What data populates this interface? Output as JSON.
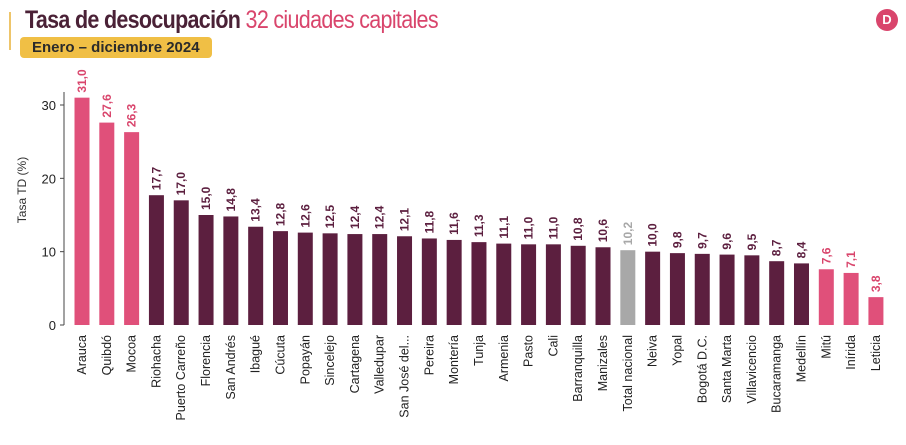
{
  "header": {
    "title_main": "Tasa de desocupación",
    "title_highlight": "32 ciudades capitales",
    "subtitle": "Enero – diciembre 2024",
    "logo_icon": "dane-logo"
  },
  "colors": {
    "high": "#e0507a",
    "normal": "#5c1f3f",
    "national": "#a8a8a8",
    "text_high": "#d9456c"
  },
  "chart_data": {
    "type": "bar",
    "ylabel": "Tasa TD (%)",
    "ylim": [
      0,
      30
    ],
    "yticks": [
      0,
      10,
      20,
      30
    ],
    "grid": false,
    "categories": [
      "Arauca",
      "Quibdó",
      "Mocoa",
      "Riohacha",
      "Puerto Carreño",
      "Florencia",
      "San Andrés",
      "Ibagué",
      "Cúcuta",
      "Popayán",
      "Sincelejo",
      "Cartagena",
      "Valledupar",
      "San José del...",
      "Pereira",
      "Montería",
      "Tunja",
      "Armenia",
      "Pasto",
      "Cali",
      "Barranquilla",
      "Manizales",
      "Total nacional",
      "Neiva",
      "Yopal",
      "Bogotá D.C.",
      "Santa Marta",
      "Villavicencio",
      "Bucaramanga",
      "Medellín",
      "Mitú",
      "Inírida",
      "Leticia"
    ],
    "values": [
      31.0,
      27.6,
      26.3,
      17.7,
      17.0,
      15.0,
      14.8,
      13.4,
      12.8,
      12.6,
      12.5,
      12.4,
      12.4,
      12.1,
      11.8,
      11.6,
      11.3,
      11.1,
      11.0,
      11.0,
      10.8,
      10.6,
      10.2,
      10.0,
      9.8,
      9.7,
      9.6,
      9.5,
      8.7,
      8.4,
      7.6,
      7.1,
      3.8
    ],
    "value_labels": [
      "31,0",
      "27,6",
      "26,3",
      "17,7",
      "17,0",
      "15,0",
      "14,8",
      "13,4",
      "12,8",
      "12,6",
      "12,5",
      "12,4",
      "12,4",
      "12,1",
      "11,8",
      "11,6",
      "11,3",
      "11,1",
      "11,0",
      "11,0",
      "10,8",
      "10,6",
      "10,2",
      "10,0",
      "9,8",
      "9,7",
      "9,6",
      "9,5",
      "8,7",
      "8,4",
      "7,6",
      "7,1",
      "3,8"
    ],
    "groups": [
      "high",
      "high",
      "high",
      "normal",
      "normal",
      "normal",
      "normal",
      "normal",
      "normal",
      "normal",
      "normal",
      "normal",
      "normal",
      "normal",
      "normal",
      "normal",
      "normal",
      "normal",
      "normal",
      "normal",
      "normal",
      "normal",
      "national",
      "normal",
      "normal",
      "normal",
      "normal",
      "normal",
      "normal",
      "normal",
      "high",
      "high",
      "high"
    ]
  }
}
